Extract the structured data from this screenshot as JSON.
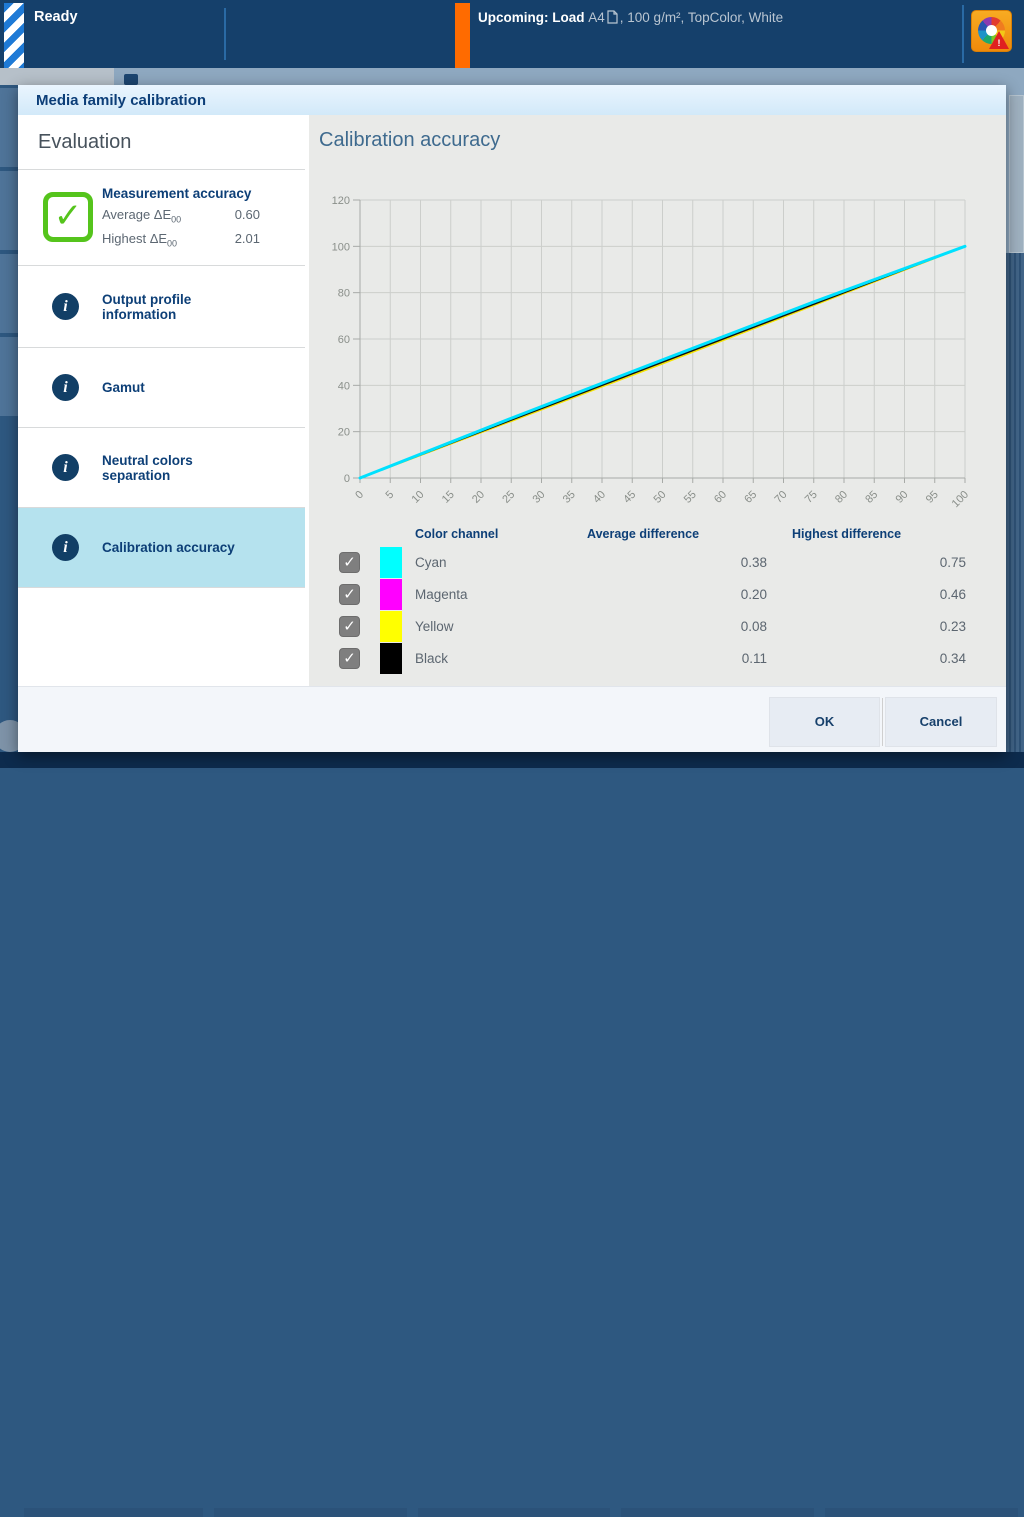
{
  "top_bar": {
    "status": "Ready",
    "upcoming": {
      "bold": "Upcoming: Load",
      "media": "A4",
      "rest": ", 100 g/m², TopColor, White"
    },
    "colors": {
      "bar": "#15406b",
      "accent_orange": "#ff6b00",
      "status_stripe_blue": "#1e7ad6"
    },
    "alert_icon": "color-wheel-warning"
  },
  "dialog": {
    "title": "Media family calibration",
    "sidebar": {
      "heading": "Evaluation",
      "selected_bg": "#b5e2ee",
      "items": [
        {
          "icon": "check-ok-icon",
          "title": "Measurement accuracy",
          "selected": false,
          "metrics": [
            {
              "label": "Average ΔE",
              "sub": "00",
              "value": "0.60"
            },
            {
              "label": "Highest ΔE",
              "sub": "00",
              "value": "2.01"
            }
          ]
        },
        {
          "icon": "info-icon",
          "title": "Output profile information",
          "selected": false
        },
        {
          "icon": "info-icon",
          "title": "Gamut",
          "selected": false
        },
        {
          "icon": "info-icon",
          "title": "Neutral colors separation",
          "selected": false
        },
        {
          "icon": "info-icon",
          "title": "Calibration accuracy",
          "selected": true
        }
      ]
    },
    "main": {
      "heading": "Calibration accuracy",
      "table": {
        "headers": [
          "Color channel",
          "Average difference",
          "Highest difference"
        ],
        "rows": [
          {
            "channel": "Cyan",
            "color": "#00ffff",
            "average": "0.38",
            "highest": "0.75",
            "checked": true
          },
          {
            "channel": "Magenta",
            "color": "#ff00ff",
            "average": "0.20",
            "highest": "0.46",
            "checked": true
          },
          {
            "channel": "Yellow",
            "color": "#ffff00",
            "average": "0.08",
            "highest": "0.23",
            "checked": true
          },
          {
            "channel": "Black",
            "color": "#000000",
            "average": "0.11",
            "highest": "0.34",
            "checked": true
          }
        ]
      }
    },
    "footer": {
      "ok_label": "OK",
      "cancel_label": "Cancel"
    }
  },
  "chart_data": {
    "type": "line",
    "title": "Calibration accuracy",
    "xlabel": "",
    "ylabel": "",
    "xlim": [
      0,
      100
    ],
    "ylim": [
      0,
      120
    ],
    "x_ticks": [
      0,
      5,
      10,
      15,
      20,
      25,
      30,
      35,
      40,
      45,
      50,
      55,
      60,
      65,
      70,
      75,
      80,
      85,
      90,
      95,
      100
    ],
    "y_ticks": [
      0,
      20,
      40,
      60,
      80,
      100,
      120
    ],
    "grid": true,
    "legend_position": "none",
    "series": [
      {
        "name": "Yellow",
        "color": "#f5e400",
        "width": 2,
        "points": [
          [
            0,
            0
          ],
          [
            25,
            24.6
          ],
          [
            50,
            49.4
          ],
          [
            75,
            74.6
          ],
          [
            100,
            100
          ]
        ]
      },
      {
        "name": "Magenta",
        "color": "#ff00ff",
        "width": 2,
        "points": [
          [
            0,
            0
          ],
          [
            25,
            25.3
          ],
          [
            50,
            50.4
          ],
          [
            75,
            75.4
          ],
          [
            100,
            100
          ]
        ]
      },
      {
        "name": "Black",
        "color": "#111111",
        "width": 1.6,
        "points": [
          [
            0,
            0
          ],
          [
            50,
            50
          ],
          [
            100,
            100
          ]
        ]
      },
      {
        "name": "Cyan",
        "color": "#00e1ff",
        "width": 3,
        "points": [
          [
            0,
            0
          ],
          [
            25,
            25.8
          ],
          [
            50,
            51
          ],
          [
            75,
            76
          ],
          [
            100,
            100
          ]
        ]
      }
    ]
  }
}
